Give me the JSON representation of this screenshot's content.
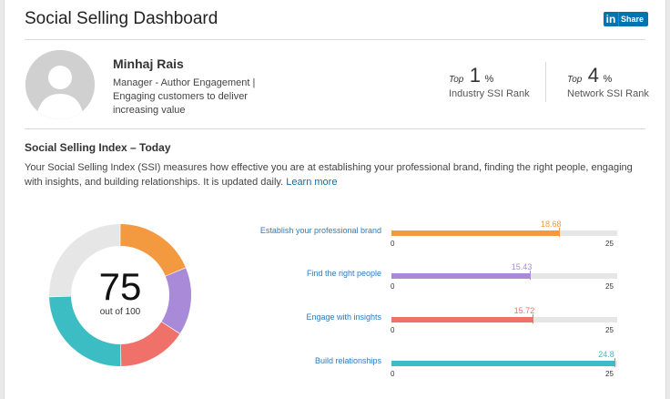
{
  "header": {
    "title": "Social Selling Dashboard",
    "share_in": "in",
    "share_label": "Share"
  },
  "profile": {
    "name": "Minhaj Rais",
    "headline": "Manager - Author Engagement | Engaging customers to deliver increasing value"
  },
  "ranks": [
    {
      "top_label": "Top",
      "value": "1",
      "unit": "%",
      "caption": "Industry SSI Rank"
    },
    {
      "top_label": "Top",
      "value": "4",
      "unit": "%",
      "caption": "Network SSI Rank"
    }
  ],
  "ssi": {
    "title": "Social Selling Index – Today",
    "description": "Your Social Selling Index (SSI) measures how effective you are at establishing your professional brand, finding the right people, engaging with insights, and building relationships. It is updated daily.",
    "learn_more": "Learn more",
    "score": "75",
    "score_sub": "out of 100"
  },
  "chart_data": {
    "type": "bar",
    "categories": [
      "Establish your professional brand",
      "Find the right people",
      "Engage with insights",
      "Build relationships"
    ],
    "values": [
      18.68,
      15.43,
      15.72,
      24.8
    ],
    "value_labels": [
      "18.68",
      "15.43",
      "15.72",
      "24.8"
    ],
    "xlim": [
      0,
      25
    ],
    "tick_labels": [
      "0",
      "25"
    ],
    "colors": [
      "#f39a40",
      "#a98ad8",
      "#f0706a",
      "#3cbdc4"
    ],
    "total_score": 75,
    "total_max": 100,
    "remainder_color": "#e6e6e6"
  }
}
